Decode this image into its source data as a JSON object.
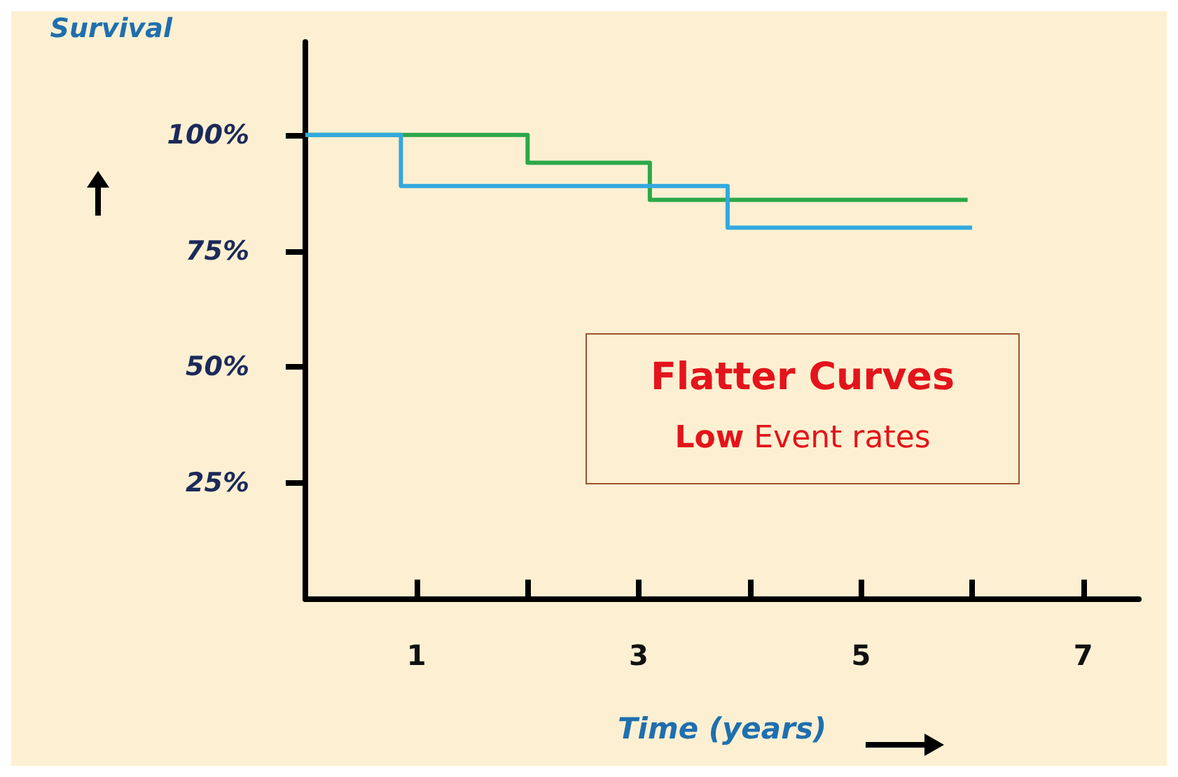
{
  "chart_data": {
    "type": "step",
    "xlabel": "Time (years)",
    "ylabel": "Survival",
    "xlim": [
      0,
      7.5
    ],
    "ylim": [
      0,
      120
    ],
    "xticks": [
      1,
      {
        "value": 2,
        "label": null
      },
      3,
      {
        "value": 4,
        "label": null
      },
      5,
      {
        "value": 6,
        "label": null
      },
      7
    ],
    "yticks": [
      {
        "value": 25,
        "label": "25%"
      },
      {
        "value": 50,
        "label": "50%"
      },
      {
        "value": 75,
        "label": "75%"
      },
      {
        "value": 100,
        "label": "100%"
      }
    ],
    "series": [
      {
        "color": "#2aa84a",
        "x": [
          0,
          2.0,
          3.1,
          5.96
        ],
        "values": [
          100,
          94,
          86,
          86
        ]
      },
      {
        "color": "#33a8df",
        "x": [
          0,
          0.86,
          3.8,
          6.0
        ],
        "values": [
          100,
          89,
          80,
          80
        ]
      }
    ],
    "annotations": [
      "Flatter Curves",
      "Low Event rates"
    ],
    "grid": false,
    "marker": "none",
    "line_style": "solid"
  }
}
